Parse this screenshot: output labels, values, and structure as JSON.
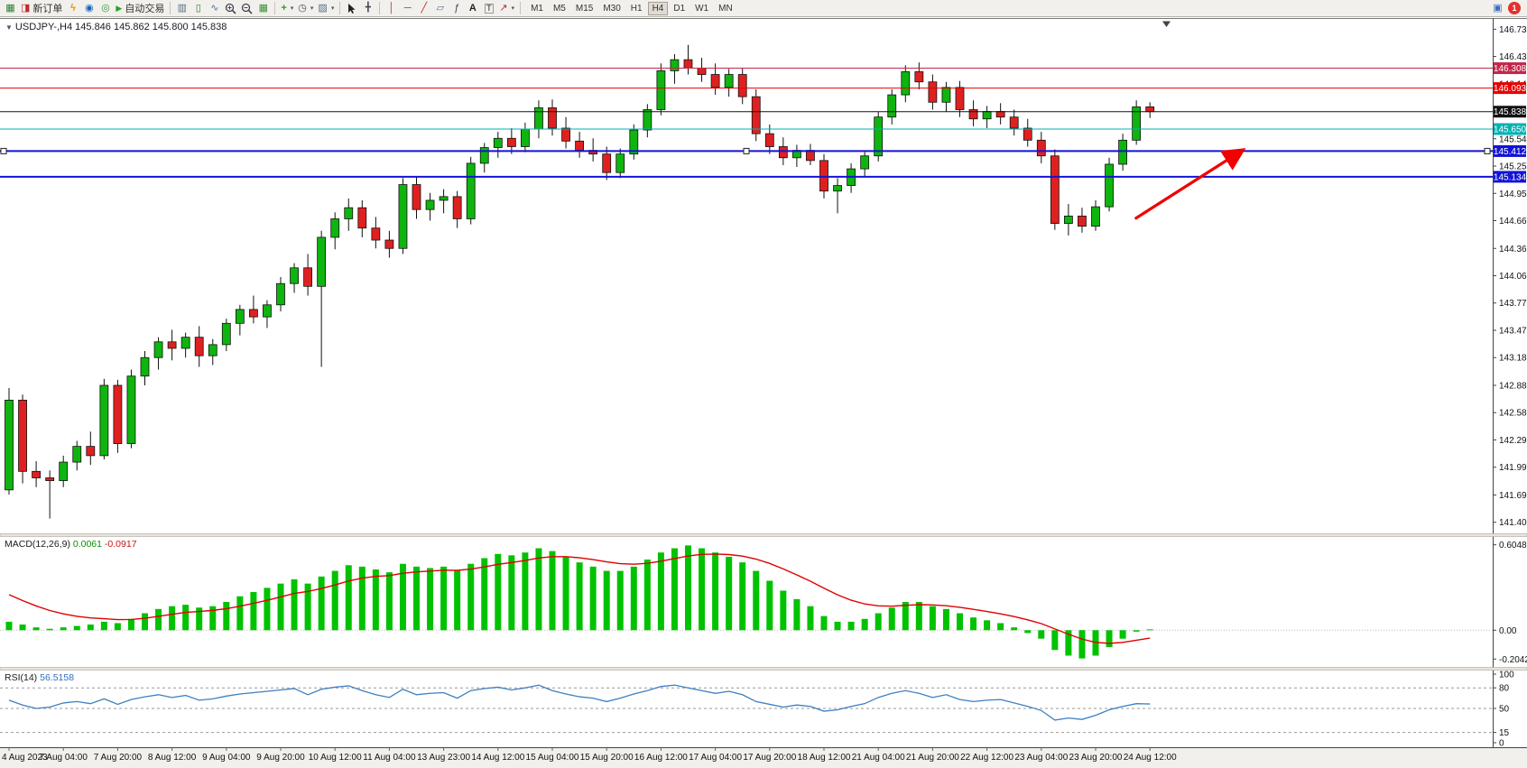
{
  "toolbar": {
    "new_order_label": "新订单",
    "autotrade_label": "自动交易",
    "timeframes": [
      "M1",
      "M5",
      "M15",
      "M30",
      "H1",
      "H4",
      "D1",
      "W1",
      "MN"
    ],
    "active_timeframe": "H4",
    "notification_count": "1",
    "icons": {
      "new_chart": "▦",
      "new_order": "◨",
      "bolt": "ϟ",
      "support": "◉",
      "community": "◎",
      "autotrade_play": "▶",
      "bars_chart": "▥",
      "candles_chart": "▯",
      "line_chart": "∿",
      "tile": "▦",
      "indicators": "+",
      "periods": "◷",
      "templates": "▨",
      "crosshair": "╋",
      "vline": "│",
      "hline": "─",
      "trendline": "╱",
      "channel": "▱",
      "fibo": "ƒ",
      "text_tool": "A",
      "label_tool": "T",
      "shapes": "↗",
      "caret": "▾",
      "collapse": "▼",
      "mq": "▣"
    }
  },
  "chart": {
    "symbol_label": "USDJPY-,H4",
    "ohlc_label": "145.846 145.862 145.800 145.838"
  },
  "chart_data": [
    {
      "type": "candlestick",
      "symbol": "USDJPY-",
      "timeframe": "H4",
      "open": "145.846",
      "high": "145.862",
      "low": "145.800",
      "close": "145.838",
      "colors": {
        "up": "#0EB50E",
        "down": "#E02020",
        "wick": "#111111"
      },
      "y_axis": {
        "min": 141.28,
        "max": 146.85,
        "ticks": [
          "146.730",
          "146.435",
          "146.140",
          "145.845",
          "145.545",
          "145.250",
          "144.955",
          "144.660",
          "144.360",
          "144.065",
          "143.770",
          "143.475",
          "143.180",
          "142.880",
          "142.585",
          "142.290",
          "141.995",
          "141.695",
          "141.400"
        ]
      },
      "x_labels": [
        "4 Aug 2023",
        "7 Aug 04:00",
        "7 Aug 20:00",
        "8 Aug 12:00",
        "9 Aug 04:00",
        "9 Aug 20:00",
        "10 Aug 12:00",
        "11 Aug 04:00",
        "13 Aug 23:00",
        "14 Aug 12:00",
        "15 Aug 04:00",
        "15 Aug 20:00",
        "16 Aug 12:00",
        "17 Aug 04:00",
        "17 Aug 20:00",
        "18 Aug 12:00",
        "21 Aug 04:00",
        "21 Aug 20:00",
        "22 Aug 12:00",
        "23 Aug 04:00",
        "23 Aug 20:00",
        "24 Aug 12:00"
      ],
      "label_every_n_candles": 4,
      "candles": [
        [
          141.75,
          142.85,
          141.7,
          142.72
        ],
        [
          142.72,
          142.78,
          141.82,
          141.95
        ],
        [
          141.95,
          142.06,
          141.78,
          141.88
        ],
        [
          141.88,
          141.96,
          141.44,
          141.85
        ],
        [
          141.85,
          142.12,
          141.78,
          142.05
        ],
        [
          142.05,
          142.28,
          141.96,
          142.22
        ],
        [
          142.22,
          142.38,
          142.02,
          142.12
        ],
        [
          142.12,
          142.95,
          142.08,
          142.88
        ],
        [
          142.88,
          142.94,
          142.15,
          142.25
        ],
        [
          142.25,
          143.05,
          142.2,
          142.98
        ],
        [
          142.98,
          143.25,
          142.88,
          143.18
        ],
        [
          143.18,
          143.4,
          143.05,
          143.35
        ],
        [
          143.35,
          143.48,
          143.15,
          143.28
        ],
        [
          143.28,
          143.45,
          143.18,
          143.4
        ],
        [
          143.4,
          143.52,
          143.08,
          143.2
        ],
        [
          143.2,
          143.38,
          143.1,
          143.32
        ],
        [
          143.32,
          143.6,
          143.25,
          143.55
        ],
        [
          143.55,
          143.75,
          143.42,
          143.7
        ],
        [
          143.7,
          143.85,
          143.55,
          143.62
        ],
        [
          143.62,
          143.8,
          143.5,
          143.75
        ],
        [
          143.75,
          144.05,
          143.68,
          143.98
        ],
        [
          143.98,
          144.2,
          143.88,
          144.15
        ],
        [
          144.15,
          144.3,
          143.85,
          143.95
        ],
        [
          143.95,
          144.55,
          143.08,
          144.48
        ],
        [
          144.48,
          144.75,
          144.35,
          144.68
        ],
        [
          144.68,
          144.9,
          144.55,
          144.8
        ],
        [
          144.8,
          144.88,
          144.48,
          144.58
        ],
        [
          144.58,
          144.7,
          144.36,
          144.45
        ],
        [
          144.45,
          144.55,
          144.26,
          144.36
        ],
        [
          144.36,
          145.12,
          144.3,
          145.05
        ],
        [
          145.05,
          145.14,
          144.68,
          144.78
        ],
        [
          144.78,
          144.96,
          144.66,
          144.88
        ],
        [
          144.88,
          145.0,
          144.74,
          144.92
        ],
        [
          144.92,
          144.98,
          144.58,
          144.68
        ],
        [
          144.68,
          145.35,
          144.62,
          145.28
        ],
        [
          145.28,
          145.5,
          145.18,
          145.45
        ],
        [
          145.45,
          145.62,
          145.34,
          145.55
        ],
        [
          145.55,
          145.66,
          145.38,
          145.46
        ],
        [
          145.46,
          145.72,
          145.4,
          145.65
        ],
        [
          145.65,
          145.96,
          145.55,
          145.88
        ],
        [
          145.88,
          145.97,
          145.58,
          145.66
        ],
        [
          145.66,
          145.78,
          145.44,
          145.52
        ],
        [
          145.52,
          145.62,
          145.34,
          145.42
        ],
        [
          145.42,
          145.55,
          145.3,
          145.38
        ],
        [
          145.38,
          145.46,
          145.1,
          145.18
        ],
        [
          145.18,
          145.44,
          145.12,
          145.38
        ],
        [
          145.38,
          145.7,
          145.32,
          145.64
        ],
        [
          145.64,
          145.92,
          145.56,
          145.86
        ],
        [
          145.86,
          146.36,
          145.8,
          146.28
        ],
        [
          146.28,
          146.46,
          146.14,
          146.4
        ],
        [
          146.4,
          146.56,
          146.24,
          146.31
        ],
        [
          146.31,
          146.42,
          146.16,
          146.24
        ],
        [
          146.24,
          146.36,
          146.02,
          146.1
        ],
        [
          146.1,
          146.3,
          146.0,
          146.24
        ],
        [
          146.24,
          146.31,
          145.92,
          146.0
        ],
        [
          146.0,
          146.08,
          145.52,
          145.6
        ],
        [
          145.6,
          145.7,
          145.38,
          145.46
        ],
        [
          145.46,
          145.56,
          145.26,
          145.34
        ],
        [
          145.34,
          145.48,
          145.24,
          145.42
        ],
        [
          145.42,
          145.49,
          145.26,
          145.31
        ],
        [
          145.31,
          145.38,
          144.9,
          144.98
        ],
        [
          144.98,
          145.12,
          144.74,
          145.04
        ],
        [
          145.04,
          145.28,
          144.96,
          145.22
        ],
        [
          145.22,
          145.42,
          145.14,
          145.36
        ],
        [
          145.36,
          145.84,
          145.3,
          145.78
        ],
        [
          145.78,
          146.08,
          145.7,
          146.02
        ],
        [
          146.02,
          146.34,
          145.94,
          146.27
        ],
        [
          146.27,
          146.37,
          146.08,
          146.16
        ],
        [
          146.16,
          146.24,
          145.86,
          145.94
        ],
        [
          145.94,
          146.16,
          145.84,
          146.1
        ],
        [
          146.1,
          146.17,
          145.78,
          145.86
        ],
        [
          145.86,
          145.96,
          145.68,
          145.76
        ],
        [
          145.76,
          145.9,
          145.66,
          145.84
        ],
        [
          145.84,
          145.93,
          145.7,
          145.78
        ],
        [
          145.78,
          145.86,
          145.58,
          145.66
        ],
        [
          145.66,
          145.76,
          145.46,
          145.53
        ],
        [
          145.53,
          145.62,
          145.28,
          145.36
        ],
        [
          145.36,
          145.43,
          144.56,
          144.63
        ],
        [
          144.63,
          144.84,
          144.5,
          144.71
        ],
        [
          144.71,
          144.8,
          144.53,
          144.6
        ],
        [
          144.6,
          144.88,
          144.55,
          144.81
        ],
        [
          144.81,
          145.34,
          144.76,
          145.27
        ],
        [
          145.27,
          145.6,
          145.2,
          145.53
        ],
        [
          145.53,
          145.96,
          145.48,
          145.89
        ],
        [
          145.89,
          145.94,
          145.77,
          145.838
        ]
      ],
      "h_lines": [
        {
          "price": 146.308,
          "label": "146.308",
          "color": "#C2274B",
          "width": 1
        },
        {
          "price": 146.093,
          "label": "146.093",
          "color": "#E80000",
          "width": 1
        },
        {
          "price": 145.65,
          "label": "145.650",
          "color": "#00B2B2",
          "width": 1
        },
        {
          "price": 145.412,
          "label": "145.412",
          "color": "#1313D6",
          "width": 2,
          "handles": true
        },
        {
          "price": 145.134,
          "label": "145.134",
          "color": "#1313D6",
          "width": 2
        },
        {
          "price": 145.838,
          "label": "145.838",
          "color": "#111111",
          "width": 1,
          "role": "current-price"
        }
      ],
      "arrow": {
        "from": {
          "index": 82.9,
          "price": 144.68
        },
        "to": {
          "index": 90.7,
          "price": 145.41
        },
        "color": "#F00000"
      }
    },
    {
      "type": "macd",
      "label": "MACD(12,26,9)",
      "value_main": "0.0061",
      "value_signal": "-0.0917",
      "colors": {
        "histogram": "#00C200",
        "signal": "#E00000"
      },
      "signal_seed": 0.3,
      "y_ticks": [
        "0.6048",
        "0.00",
        "-0.2042"
      ],
      "histogram": [
        0.06,
        0.04,
        0.02,
        0.01,
        0.02,
        0.03,
        0.04,
        0.06,
        0.05,
        0.08,
        0.12,
        0.15,
        0.17,
        0.18,
        0.16,
        0.17,
        0.2,
        0.24,
        0.27,
        0.3,
        0.33,
        0.36,
        0.33,
        0.38,
        0.42,
        0.46,
        0.45,
        0.43,
        0.41,
        0.47,
        0.45,
        0.44,
        0.45,
        0.42,
        0.47,
        0.51,
        0.54,
        0.53,
        0.55,
        0.58,
        0.56,
        0.52,
        0.48,
        0.45,
        0.42,
        0.42,
        0.45,
        0.5,
        0.55,
        0.58,
        0.6,
        0.58,
        0.55,
        0.52,
        0.48,
        0.42,
        0.35,
        0.28,
        0.22,
        0.17,
        0.1,
        0.06,
        0.06,
        0.08,
        0.12,
        0.16,
        0.2,
        0.2,
        0.17,
        0.15,
        0.12,
        0.09,
        0.07,
        0.05,
        0.02,
        -0.02,
        -0.06,
        -0.14,
        -0.18,
        -0.2,
        -0.18,
        -0.12,
        -0.06,
        -0.01,
        0.006
      ]
    },
    {
      "type": "rsi",
      "label": "RSI(14)",
      "value": "56.5158",
      "color": "#3E7FC1",
      "levels": [
        80,
        50,
        15
      ],
      "y_ticks": [
        "100",
        "80",
        "50",
        "15",
        "0"
      ],
      "values": [
        62,
        55,
        50,
        52,
        58,
        60,
        57,
        64,
        56,
        63,
        67,
        70,
        66,
        69,
        62,
        64,
        68,
        71,
        73,
        75,
        77,
        79,
        70,
        78,
        81,
        83,
        76,
        70,
        66,
        78,
        70,
        72,
        73,
        65,
        76,
        79,
        81,
        77,
        80,
        84,
        76,
        71,
        67,
        65,
        60,
        65,
        71,
        76,
        82,
        84,
        80,
        76,
        72,
        75,
        70,
        60,
        56,
        52,
        55,
        53,
        46,
        48,
        53,
        57,
        66,
        72,
        76,
        72,
        66,
        70,
        63,
        60,
        62,
        63,
        58,
        53,
        47,
        33,
        36,
        34,
        40,
        48,
        53,
        57,
        56.5
      ]
    }
  ]
}
